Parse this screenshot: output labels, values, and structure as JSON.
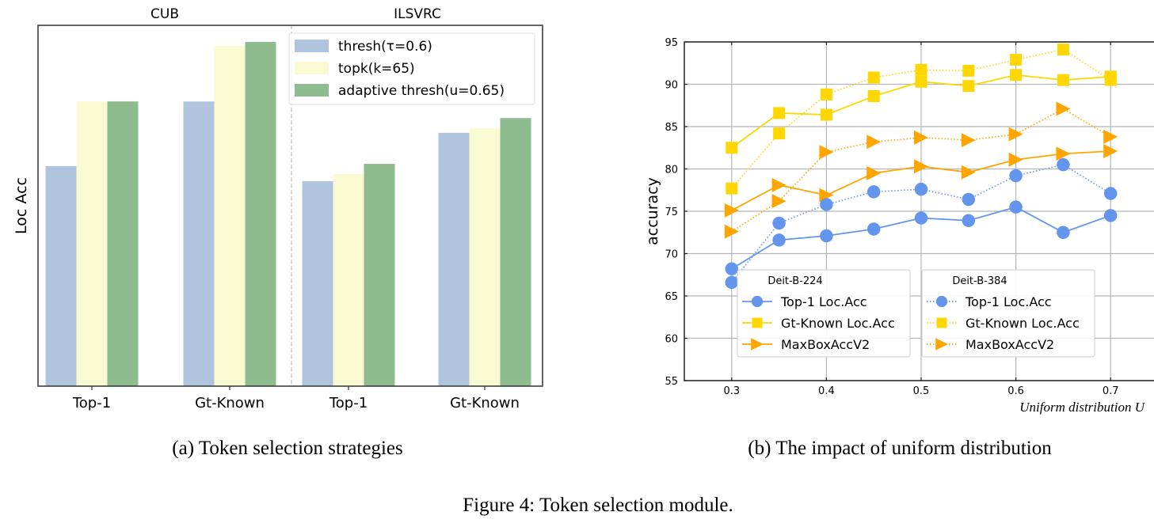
{
  "figure_caption": "Figure 4: Token selection module.",
  "chart_data": [
    {
      "type": "bar",
      "subcaption": "(a) Token selection strategies",
      "title": "",
      "ylabel": "Loc Acc",
      "xlabel": "",
      "y_ticks_shown": false,
      "ylim": [
        0,
        100
      ],
      "value_note": "relative bar heights (no y-axis scale shown); axis top = 100",
      "groups": [
        {
          "name": "CUB",
          "categories": [
            "Top-1",
            "Gt-Known"
          ]
        },
        {
          "name": "ILSVRC",
          "categories": [
            "Top-1",
            "Gt-Known"
          ]
        }
      ],
      "categories": [
        "Top-1",
        "Gt-Known",
        "Top-1",
        "Gt-Known"
      ],
      "series": [
        {
          "name": "thresh(τ=0.6)",
          "color": "#b0c4de",
          "values": [
            61.0,
            78.9,
            56.8,
            70.2
          ]
        },
        {
          "name": "topk(k=65)",
          "color": "#fafad2",
          "values": [
            78.9,
            94.3,
            58.8,
            71.5
          ]
        },
        {
          "name": "adaptive thresh(u=0.65)",
          "color": "#8fbc8f",
          "values": [
            78.9,
            95.4,
            61.6,
            74.3
          ]
        }
      ],
      "legend_position": "top-right",
      "grid": false
    },
    {
      "type": "line",
      "subcaption": "(b) The impact of uniform distribution",
      "title": "",
      "xlabel": "Uniform distribution U",
      "ylabel": "accuracy",
      "xlim": [
        0.25,
        0.75
      ],
      "ylim": [
        55,
        95
      ],
      "x_ticks": [
        0.3,
        0.4,
        0.5,
        0.6,
        0.7
      ],
      "x_tick_labels": [
        "0.3",
        "0.4",
        "0.5",
        "0.6",
        "0.7"
      ],
      "y_ticks": [
        55,
        60,
        65,
        70,
        75,
        80,
        85,
        90,
        95
      ],
      "y_tick_labels": [
        "55",
        "60",
        "65",
        "70",
        "75",
        "80",
        "85",
        "90",
        "95"
      ],
      "grid": true,
      "x": [
        0.3,
        0.35,
        0.4,
        0.45,
        0.5,
        0.55,
        0.6,
        0.65,
        0.7
      ],
      "legends": [
        {
          "title": "Deit-B-224",
          "position": "bottom-left",
          "entries": [
            "Top-1 Loc.Acc",
            "Gt-Known Loc.Acc",
            "MaxBoxAccV2"
          ]
        },
        {
          "title": "Deit-B-384",
          "position": "bottom-center",
          "entries": [
            "Top-1 Loc.Acc",
            "Gt-Known Loc.Acc",
            "MaxBoxAccV2"
          ]
        }
      ],
      "series": [
        {
          "name": "Top-1 Loc.Acc",
          "model": "Deit-B-224",
          "style": "solid",
          "marker": "circle",
          "color": "#6495ed",
          "values": [
            68.2,
            71.6,
            72.1,
            72.9,
            74.2,
            73.9,
            75.5,
            72.5,
            74.5
          ]
        },
        {
          "name": "Gt-Known Loc.Acc",
          "model": "Deit-B-224",
          "style": "solid",
          "marker": "square",
          "color": "#ffd700",
          "values": [
            82.5,
            86.6,
            86.4,
            88.6,
            90.3,
            89.8,
            91.1,
            90.5,
            90.9
          ]
        },
        {
          "name": "MaxBoxAccV2",
          "model": "Deit-B-224",
          "style": "solid",
          "marker": "triangle-right",
          "color": "#ffa500",
          "values": [
            75.1,
            78.1,
            76.9,
            79.5,
            80.3,
            79.6,
            81.1,
            81.8,
            82.1
          ]
        },
        {
          "name": "Top-1 Loc.Acc",
          "model": "Deit-B-384",
          "style": "dotted",
          "marker": "circle",
          "color": "#6495ed",
          "values": [
            66.6,
            73.6,
            75.8,
            77.3,
            77.6,
            76.4,
            79.2,
            80.5,
            77.1
          ]
        },
        {
          "name": "Gt-Known Loc.Acc",
          "model": "Deit-B-384",
          "style": "dotted",
          "marker": "square",
          "color": "#ffd700",
          "values": [
            77.7,
            84.2,
            88.8,
            90.8,
            91.7,
            91.6,
            92.9,
            94.1,
            90.5
          ]
        },
        {
          "name": "MaxBoxAccV2",
          "model": "Deit-B-384",
          "style": "dotted",
          "marker": "triangle-right",
          "color": "#ffa500",
          "values": [
            72.6,
            76.2,
            82.0,
            83.2,
            83.7,
            83.4,
            84.1,
            87.1,
            83.8
          ]
        }
      ]
    }
  ]
}
